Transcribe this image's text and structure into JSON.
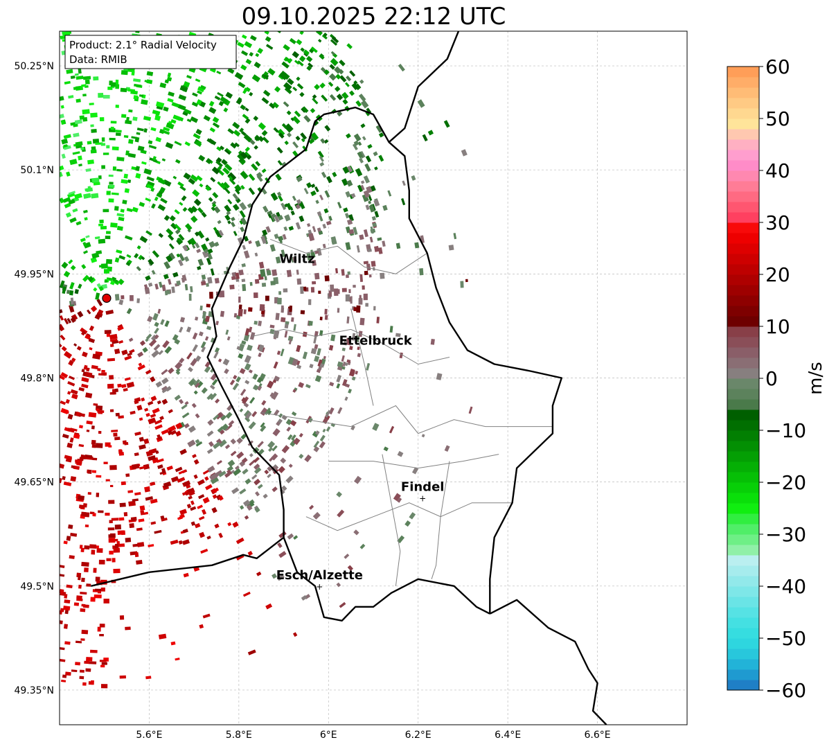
{
  "title": "09.10.2025 22:12 UTC",
  "info_box": {
    "product": "Product: 2.1° Radial Velocity",
    "data": "Data: RMIB"
  },
  "lon_ticks": [
    {
      "value": 5.6,
      "label": "5.6°E"
    },
    {
      "value": 5.8,
      "label": "5.8°E"
    },
    {
      "value": 6.0,
      "label": "6°E"
    },
    {
      "value": 6.2,
      "label": "6.2°E"
    },
    {
      "value": 6.4,
      "label": "6.4°E"
    },
    {
      "value": 6.6,
      "label": "6.6°E"
    }
  ],
  "lat_ticks": [
    {
      "value": 50.25,
      "label": "50.25°N"
    },
    {
      "value": 50.1,
      "label": "50.1°N"
    },
    {
      "value": 49.95,
      "label": "49.95°N"
    },
    {
      "value": 49.8,
      "label": "49.8°N"
    },
    {
      "value": 49.65,
      "label": "49.65°N"
    },
    {
      "value": 49.5,
      "label": "49.5°N"
    },
    {
      "value": 49.35,
      "label": "49.35°N"
    }
  ],
  "extent": {
    "lon_min": 5.4,
    "lon_max": 6.8,
    "lat_min": 49.3,
    "lat_max": 50.3
  },
  "radar_site": {
    "lon": 5.505,
    "lat": 49.915,
    "color": "#e00000"
  },
  "cities": [
    {
      "name": "Wiltz",
      "lon": 5.93,
      "lat": 49.966,
      "marker": false
    },
    {
      "name": "Ettelbruck",
      "lon": 6.105,
      "lat": 49.848,
      "marker": false
    },
    {
      "name": "Findel",
      "lon": 6.21,
      "lat": 49.627,
      "marker": true
    },
    {
      "name": "Esch/Alzette",
      "lon": 5.98,
      "lat": 49.5,
      "marker": true
    }
  ],
  "colorbar": {
    "label": "m/s",
    "vmin": -60,
    "vmax": 60,
    "ticks": [
      {
        "value": 60,
        "label": "60"
      },
      {
        "value": 50,
        "label": "50"
      },
      {
        "value": 40,
        "label": "40"
      },
      {
        "value": 30,
        "label": "30"
      },
      {
        "value": 20,
        "label": "20"
      },
      {
        "value": 10,
        "label": "10"
      },
      {
        "value": 0,
        "label": "0"
      },
      {
        "value": -10,
        "label": "−10"
      },
      {
        "value": -20,
        "label": "−20"
      },
      {
        "value": -30,
        "label": "−30"
      },
      {
        "value": -40,
        "label": "−40"
      },
      {
        "value": -50,
        "label": "−50"
      },
      {
        "value": -60,
        "label": "−60"
      }
    ],
    "bands": [
      {
        "from": -60,
        "to": -58,
        "color": "#1f7fc6"
      },
      {
        "from": -58,
        "to": -56,
        "color": "#1f9ad0"
      },
      {
        "from": -56,
        "to": -54,
        "color": "#22b3d8"
      },
      {
        "from": -54,
        "to": -52,
        "color": "#28c7dc"
      },
      {
        "from": -52,
        "to": -50,
        "color": "#2ed6df"
      },
      {
        "from": -50,
        "to": -48,
        "color": "#36dde0"
      },
      {
        "from": -48,
        "to": -46,
        "color": "#44e0e2"
      },
      {
        "from": -46,
        "to": -44,
        "color": "#56e2e4"
      },
      {
        "from": -44,
        "to": -42,
        "color": "#6ae4e6"
      },
      {
        "from": -42,
        "to": -40,
        "color": "#7ee7e8"
      },
      {
        "from": -40,
        "to": -38,
        "color": "#92e9ea"
      },
      {
        "from": -38,
        "to": -36,
        "color": "#a6eced"
      },
      {
        "from": -36,
        "to": -34,
        "color": "#baeff0"
      },
      {
        "from": -34,
        "to": -32,
        "color": "#90f0a8"
      },
      {
        "from": -32,
        "to": -30,
        "color": "#6eef86"
      },
      {
        "from": -30,
        "to": -28,
        "color": "#50ee68"
      },
      {
        "from": -28,
        "to": -26,
        "color": "#30ee40"
      },
      {
        "from": -26,
        "to": -24,
        "color": "#10ee10"
      },
      {
        "from": -24,
        "to": -22,
        "color": "#0adf0a"
      },
      {
        "from": -22,
        "to": -20,
        "color": "#08cf08"
      },
      {
        "from": -20,
        "to": -18,
        "color": "#06bf06"
      },
      {
        "from": -18,
        "to": -16,
        "color": "#05af05"
      },
      {
        "from": -16,
        "to": -14,
        "color": "#049f04"
      },
      {
        "from": -14,
        "to": -12,
        "color": "#038f03"
      },
      {
        "from": -12,
        "to": -10,
        "color": "#027f02"
      },
      {
        "from": -10,
        "to": -8,
        "color": "#016f01"
      },
      {
        "from": -8,
        "to": -6,
        "color": "#005f00"
      },
      {
        "from": -6,
        "to": -4,
        "color": "#4a7a4a"
      },
      {
        "from": -4,
        "to": -2,
        "color": "#5c825c"
      },
      {
        "from": -2,
        "to": 0,
        "color": "#6a876a"
      },
      {
        "from": 0,
        "to": 2,
        "color": "#877f7f"
      },
      {
        "from": 2,
        "to": 4,
        "color": "#8a6e74"
      },
      {
        "from": 4,
        "to": 6,
        "color": "#8a5e68"
      },
      {
        "from": 6,
        "to": 8,
        "color": "#8a4e58"
      },
      {
        "from": 8,
        "to": 10,
        "color": "#883f48"
      },
      {
        "from": 10,
        "to": 12,
        "color": "#6e0000"
      },
      {
        "from": 12,
        "to": 14,
        "color": "#7e0000"
      },
      {
        "from": 14,
        "to": 16,
        "color": "#8e0000"
      },
      {
        "from": 16,
        "to": 18,
        "color": "#9e0000"
      },
      {
        "from": 18,
        "to": 20,
        "color": "#ae0000"
      },
      {
        "from": 20,
        "to": 22,
        "color": "#be0000"
      },
      {
        "from": 22,
        "to": 24,
        "color": "#ce0000"
      },
      {
        "from": 24,
        "to": 26,
        "color": "#de0000"
      },
      {
        "from": 26,
        "to": 28,
        "color": "#ee0000"
      },
      {
        "from": 28,
        "to": 30,
        "color": "#f80a0a"
      },
      {
        "from": 30,
        "to": 32,
        "color": "#ff4060"
      },
      {
        "from": 32,
        "to": 34,
        "color": "#ff5670"
      },
      {
        "from": 34,
        "to": 36,
        "color": "#ff6a82"
      },
      {
        "from": 36,
        "to": 38,
        "color": "#ff7c96"
      },
      {
        "from": 38,
        "to": 40,
        "color": "#ff88b0"
      },
      {
        "from": 40,
        "to": 42,
        "color": "#ff8cc8"
      },
      {
        "from": 42,
        "to": 44,
        "color": "#ff9ece"
      },
      {
        "from": 44,
        "to": 46,
        "color": "#ffb0c2"
      },
      {
        "from": 46,
        "to": 48,
        "color": "#ffc8b0"
      },
      {
        "from": 48,
        "to": 50,
        "color": "#ffe49a"
      },
      {
        "from": 50,
        "to": 52,
        "color": "#ffd890"
      },
      {
        "from": 52,
        "to": 54,
        "color": "#ffca84"
      },
      {
        "from": 54,
        "to": 56,
        "color": "#ffbc76"
      },
      {
        "from": 56,
        "to": 58,
        "color": "#ffad68"
      },
      {
        "from": 58,
        "to": 60,
        "color": "#ff9e58"
      }
    ]
  },
  "palette": {
    "frame": "#000000",
    "grid": "#bbbbbb",
    "country_border": "#000000",
    "canton_border": "#808080"
  },
  "borders": {
    "country": [
      [
        6.29,
        50.3
      ],
      [
        6.265,
        50.26
      ],
      [
        6.2,
        50.22
      ],
      [
        6.17,
        50.16
      ],
      [
        6.135,
        50.14
      ],
      [
        6.1,
        50.18
      ],
      [
        6.06,
        50.19
      ],
      [
        5.99,
        50.18
      ],
      [
        5.97,
        50.17
      ],
      [
        5.95,
        50.13
      ],
      [
        5.87,
        50.09
      ],
      [
        5.83,
        50.05
      ],
      [
        5.81,
        50.0
      ],
      [
        5.78,
        49.96
      ],
      [
        5.74,
        49.9
      ],
      [
        5.75,
        49.86
      ],
      [
        5.73,
        49.83
      ],
      [
        5.76,
        49.79
      ],
      [
        5.8,
        49.74
      ],
      [
        5.83,
        49.7
      ],
      [
        5.89,
        49.66
      ],
      [
        5.9,
        49.61
      ],
      [
        5.9,
        49.57
      ],
      [
        5.84,
        49.54
      ],
      [
        5.81,
        49.545
      ],
      [
        5.74,
        49.53
      ],
      [
        5.6,
        49.52
      ],
      [
        5.47,
        49.5
      ]
    ],
    "lux_east": [
      [
        6.135,
        50.14
      ],
      [
        6.17,
        50.12
      ],
      [
        6.18,
        50.07
      ],
      [
        6.18,
        50.03
      ],
      [
        6.22,
        49.98
      ],
      [
        6.24,
        49.93
      ],
      [
        6.27,
        49.88
      ],
      [
        6.31,
        49.84
      ],
      [
        6.37,
        49.82
      ],
      [
        6.45,
        49.81
      ],
      [
        6.52,
        49.8
      ],
      [
        6.5,
        49.76
      ],
      [
        6.5,
        49.72
      ],
      [
        6.42,
        49.67
      ],
      [
        6.41,
        49.62
      ],
      [
        6.37,
        49.57
      ],
      [
        6.36,
        49.51
      ],
      [
        6.36,
        49.46
      ]
    ],
    "lux_south": [
      [
        5.9,
        49.57
      ],
      [
        5.93,
        49.52
      ],
      [
        5.97,
        49.5
      ],
      [
        5.99,
        49.455
      ],
      [
        6.03,
        49.45
      ],
      [
        6.06,
        49.47
      ],
      [
        6.1,
        49.47
      ],
      [
        6.14,
        49.49
      ],
      [
        6.2,
        49.51
      ],
      [
        6.28,
        49.5
      ],
      [
        6.33,
        49.47
      ],
      [
        6.36,
        49.46
      ]
    ],
    "germany_france": [
      [
        6.36,
        49.46
      ],
      [
        6.42,
        49.48
      ],
      [
        6.49,
        49.44
      ],
      [
        6.55,
        49.42
      ],
      [
        6.58,
        49.38
      ],
      [
        6.6,
        49.36
      ],
      [
        6.59,
        49.32
      ],
      [
        6.62,
        49.3
      ]
    ],
    "cantons": [
      [
        [
          5.87,
          50.0
        ],
        [
          5.95,
          49.98
        ],
        [
          6.02,
          49.99
        ],
        [
          6.08,
          49.96
        ],
        [
          6.15,
          49.95
        ],
        [
          6.22,
          49.98
        ]
      ],
      [
        [
          5.83,
          49.86
        ],
        [
          5.9,
          49.87
        ],
        [
          5.97,
          49.86
        ],
        [
          6.05,
          49.87
        ],
        [
          6.12,
          49.85
        ],
        [
          6.2,
          49.82
        ],
        [
          6.27,
          49.83
        ]
      ],
      [
        [
          5.85,
          49.75
        ],
        [
          5.95,
          49.74
        ],
        [
          6.05,
          49.73
        ],
        [
          6.15,
          49.76
        ],
        [
          6.2,
          49.72
        ],
        [
          6.28,
          49.74
        ],
        [
          6.35,
          49.73
        ],
        [
          6.45,
          49.73
        ],
        [
          6.5,
          49.73
        ]
      ],
      [
        [
          6.0,
          49.68
        ],
        [
          6.1,
          49.68
        ],
        [
          6.2,
          49.67
        ],
        [
          6.3,
          49.68
        ],
        [
          6.38,
          49.69
        ]
      ],
      [
        [
          5.95,
          49.6
        ],
        [
          6.02,
          49.58
        ],
        [
          6.1,
          49.6
        ],
        [
          6.18,
          49.62
        ],
        [
          6.25,
          49.6
        ],
        [
          6.32,
          49.62
        ],
        [
          6.41,
          49.62
        ]
      ],
      [
        [
          6.12,
          49.69
        ],
        [
          6.14,
          49.62
        ],
        [
          6.16,
          49.55
        ],
        [
          6.15,
          49.5
        ]
      ],
      [
        [
          6.27,
          49.68
        ],
        [
          6.25,
          49.6
        ],
        [
          6.24,
          49.53
        ],
        [
          6.23,
          49.51
        ]
      ],
      [
        [
          6.05,
          49.9
        ],
        [
          6.08,
          49.82
        ],
        [
          6.1,
          49.76
        ]
      ]
    ]
  }
}
